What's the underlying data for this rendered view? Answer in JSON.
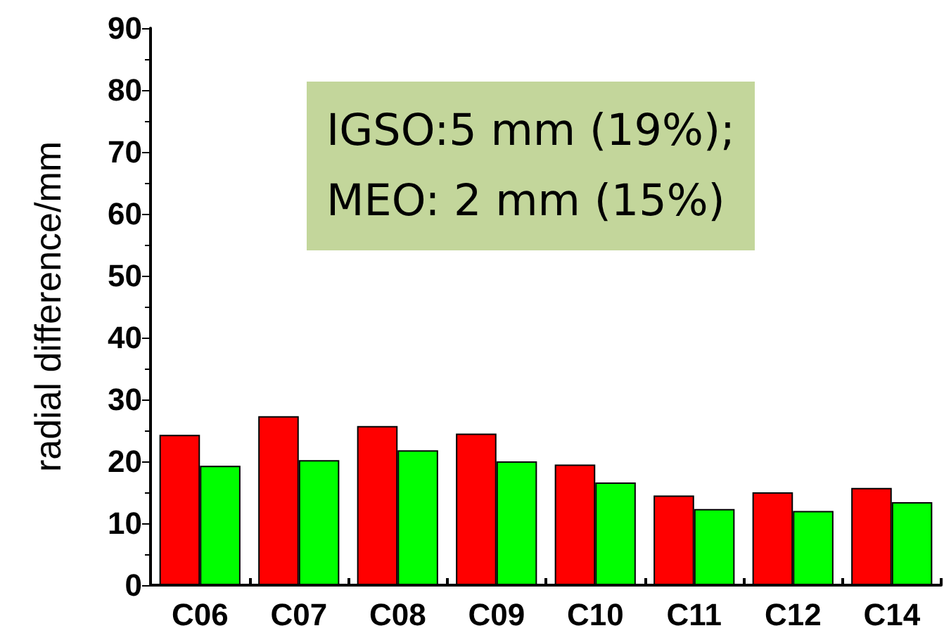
{
  "chart_data": {
    "type": "bar",
    "ylabel": "radial difference/mm",
    "categories": [
      "C06",
      "C07",
      "C08",
      "C09",
      "C10",
      "C11",
      "C12",
      "C14"
    ],
    "series": [
      {
        "color": "#ff0000",
        "values": [
          24.3,
          27.3,
          25.7,
          24.5,
          19.5,
          14.5,
          15.0,
          15.7
        ]
      },
      {
        "color": "#00ff00",
        "values": [
          19.3,
          20.2,
          21.8,
          20.0,
          16.6,
          12.3,
          12.0,
          13.4
        ]
      }
    ],
    "ylim": [
      0,
      90
    ],
    "yticks": [
      0,
      10,
      20,
      30,
      40,
      50,
      60,
      70,
      80,
      90
    ],
    "grid": false,
    "annotations": [
      "IGSO:5 mm (19%);\nMEO: 2 mm (15%)"
    ]
  }
}
